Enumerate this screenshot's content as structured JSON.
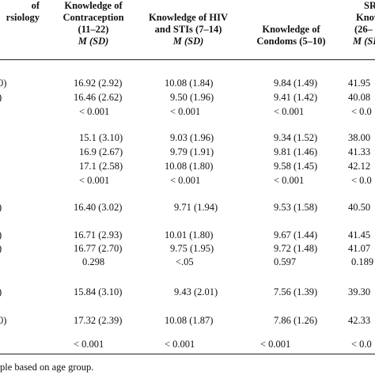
{
  "header": {
    "col0": [
      "of",
      "rsiology"
    ],
    "col1": [
      "Knowledge of",
      "Contraception",
      "(11–22)",
      "M (SD)"
    ],
    "col2": [
      "Knowledge of HIV",
      "and STIs (7–14)",
      "M (SD)"
    ],
    "col3": [
      "Knowledge of",
      "Condoms (5–10)"
    ],
    "col4": [
      "SR",
      "Knowl",
      "(26–",
      "M (SD)"
    ]
  },
  "rows": [
    {
      "lbl": "0)",
      "c1": "16.92 (2.92)",
      "c2": "10.08 (1.84)",
      "c3": "9.84 (1.49)",
      "c4": "41.95"
    },
    {
      "lbl": ")",
      "c1": "16.46 (2.62)",
      "c2": "9.50 (1.96)",
      "c3": "9.41 (1.42)",
      "c4": "40.08"
    },
    {
      "lbl": "",
      "c1": "< 0.001",
      "c2": "< 0.001",
      "c3": "< 0.001",
      "c4": "< 0.0"
    },
    {
      "lbl": "",
      "c1": "15.1 (3.10)",
      "c2": "9.03 (1.96)",
      "c3": "9.34 (1.52)",
      "c4": "38.00"
    },
    {
      "lbl": "",
      "c1": "16.9 (2.67)",
      "c2": "9.79 (1.91)",
      "c3": "9.81 (1.46)",
      "c4": "41.33"
    },
    {
      "lbl": "",
      "c1": "17.1 (2.58)",
      "c2": "10.08 (1.80)",
      "c3": "9.58 (1.45)",
      "c4": "42.12"
    },
    {
      "lbl": "",
      "c1": "< 0.001",
      "c2": "< 0.001",
      "c3": "< 0.001",
      "c4": "< 0.0"
    },
    {
      "lbl": ")",
      "c1": "16.40 (3.02)",
      "c2": "9.71 (1.94)",
      "c3": "9.53 (1.58)",
      "c4": "40.50"
    },
    {
      "lbl": ")",
      "c1": "16.71 (2.93)",
      "c2": "10.01 (1.80)",
      "c3": "9.67 (1.44)",
      "c4": "41.45"
    },
    {
      "lbl": ")",
      "c1": "16.77 (2.70)",
      "c2": "9.75 (1.95)",
      "c3": "9.72 (1.48)",
      "c4": "41.07"
    },
    {
      "lbl": "",
      "c1": "0.298",
      "c2": "<.05",
      "c3": "0.597",
      "c4": "0.189"
    },
    {
      "lbl": ")",
      "c1": "15.84 (3.10)",
      "c2": "9.43 (2.01)",
      "c3": "7.56 (1.39)",
      "c4": "39.30"
    },
    {
      "lbl": "0)",
      "c1": "17.32 (2.39)",
      "c2": "10.08 (1.87)",
      "c3": "7.86 (1.26)",
      "c4": "42.33"
    },
    {
      "lbl": "",
      "c1": "< 0.001",
      "c2": "< 0.001",
      "c3": "< 0.001",
      "c4": "< 0.0"
    }
  ],
  "footnote": "ple based on age group."
}
